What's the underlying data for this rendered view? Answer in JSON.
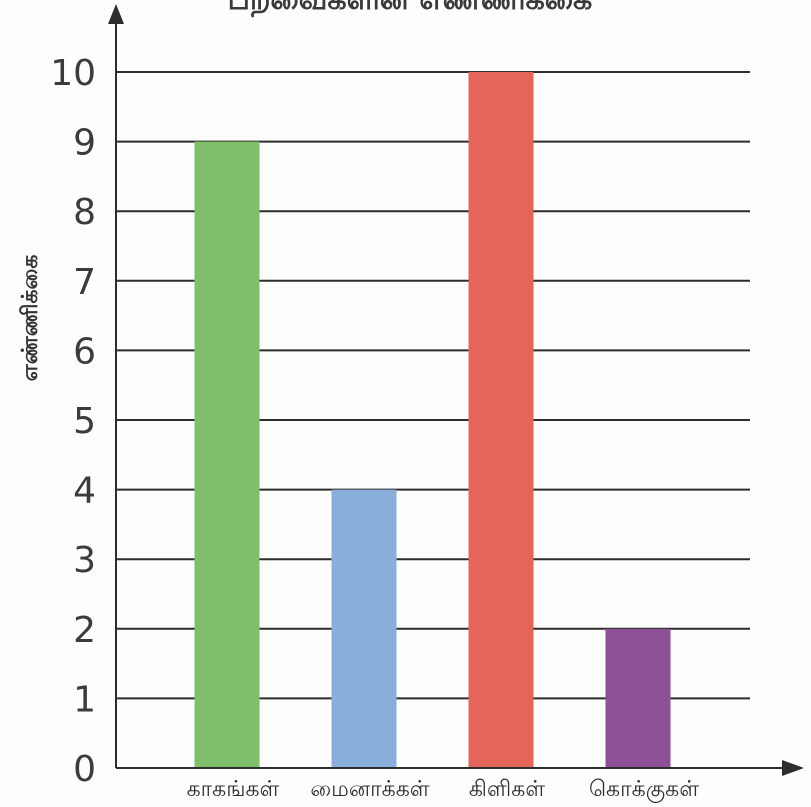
{
  "chart_data": {
    "type": "bar",
    "title": "பறவைகளின் எண்ணிக்கை",
    "ylabel": "எண்ணிக்கை",
    "xlabel": "",
    "categories": [
      "காகங்கள்",
      "மைனாக்கள்",
      "கிளிகள்",
      "கொக்குகள்"
    ],
    "values": [
      9,
      4,
      10,
      2
    ],
    "colors": [
      "#7fbf6a",
      "#8aaedc",
      "#e5655b",
      "#8d4f96"
    ],
    "ylim": [
      0,
      10
    ],
    "yticks": [
      "0",
      "1",
      "2",
      "3",
      "4",
      "5",
      "6",
      "7",
      "8",
      "9",
      "10"
    ],
    "grid": true,
    "legend": "none"
  }
}
